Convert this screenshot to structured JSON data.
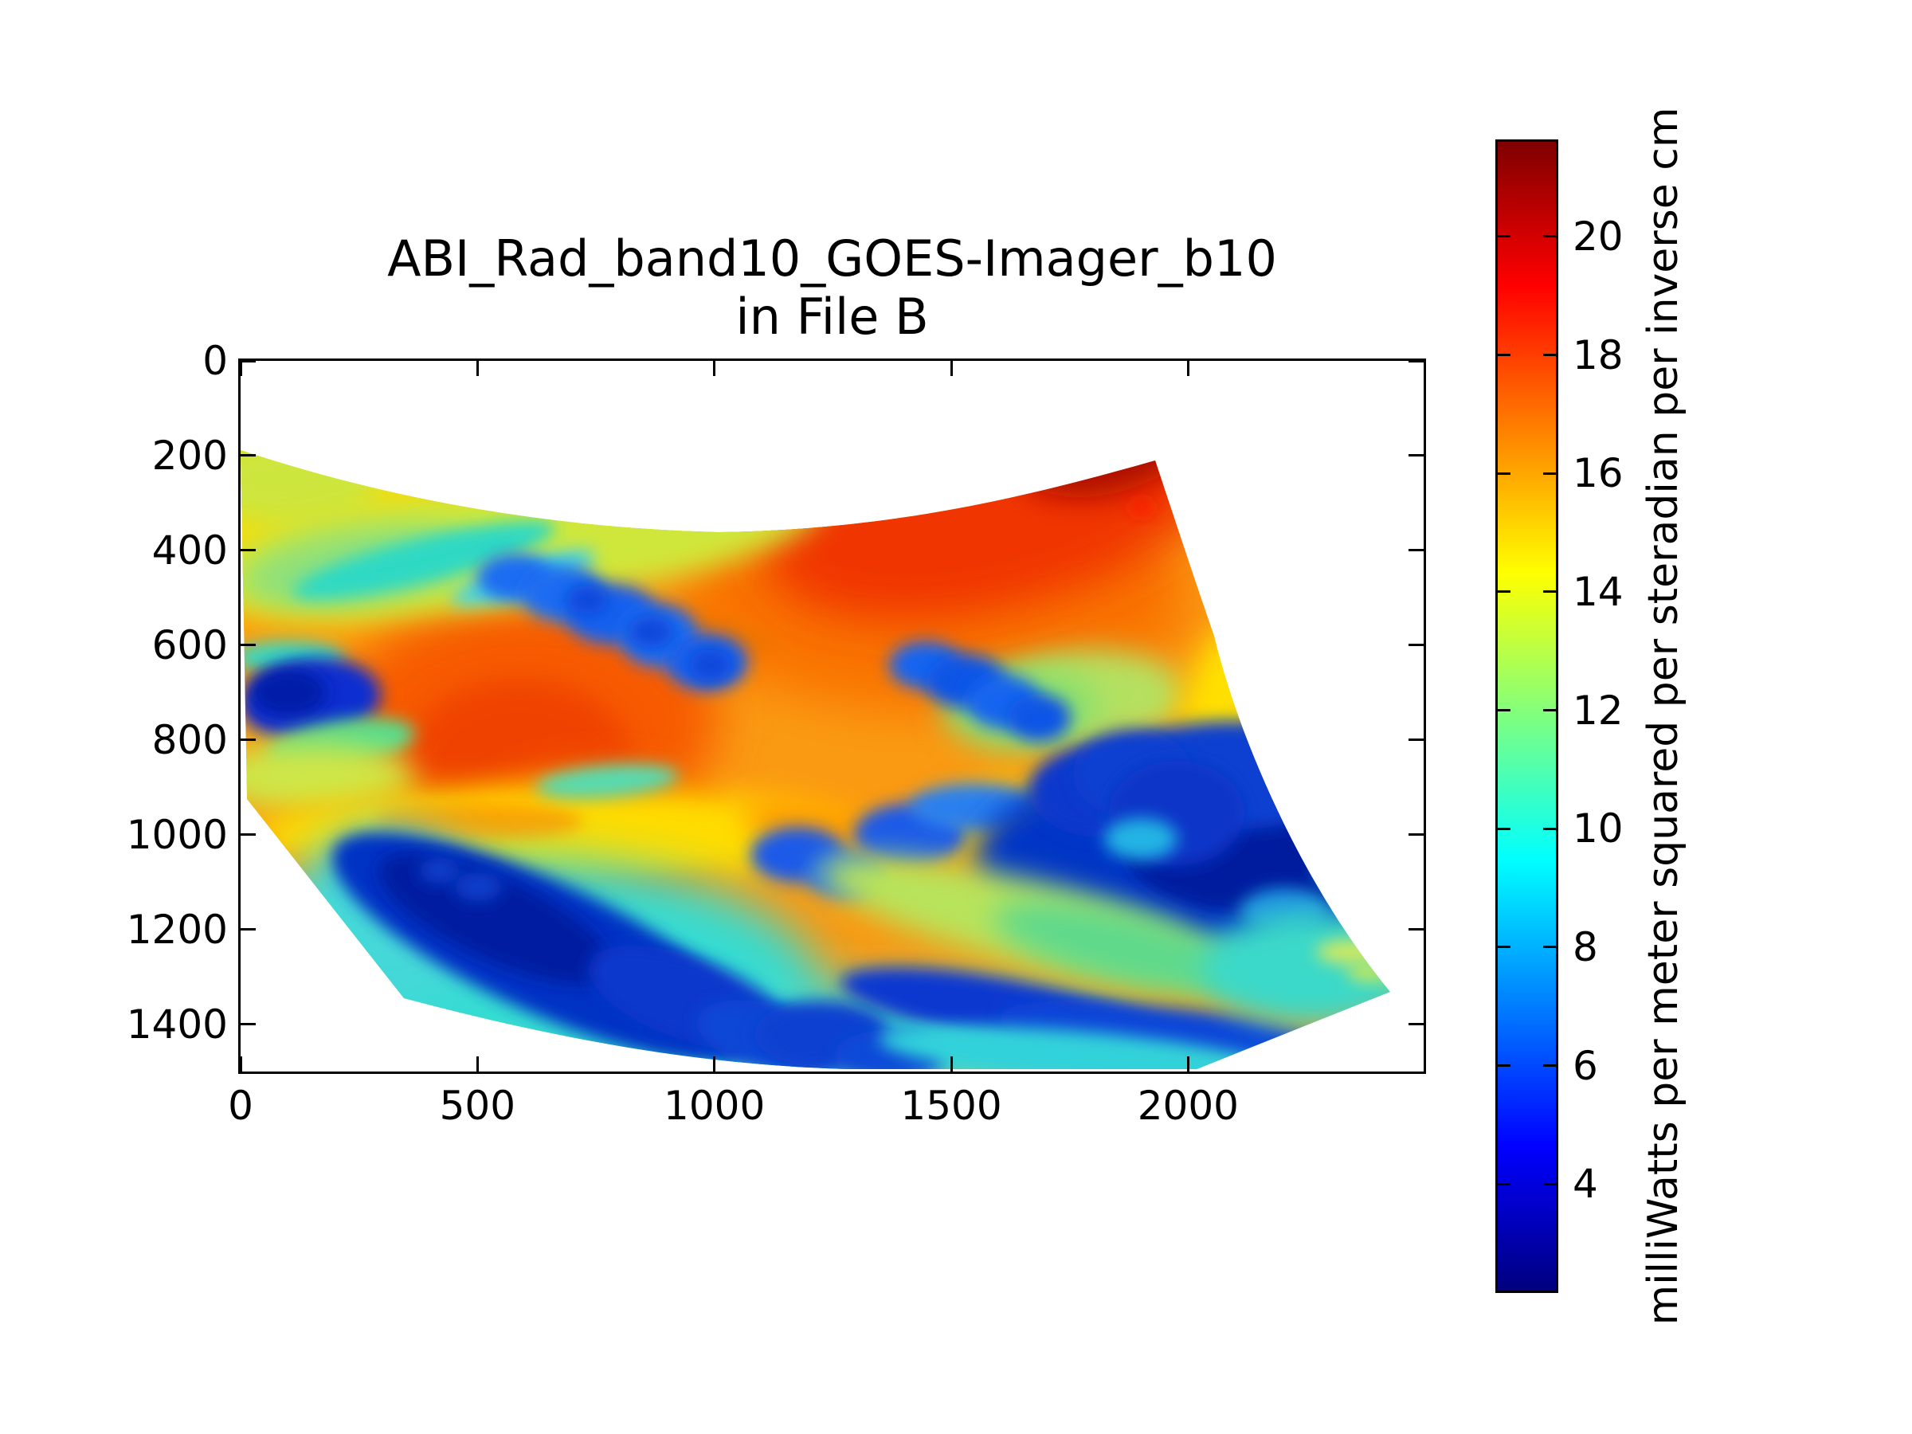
{
  "figure": {
    "background": "#ffffff",
    "title_text": "ABI_Rad_band10_GOES-Imager_b10\nin File B"
  },
  "axes": {
    "x_tick_labels": [
      "0",
      "500",
      "1000",
      "1500",
      "2000"
    ],
    "y_tick_labels": [
      "0",
      "200",
      "400",
      "600",
      "800",
      "1000",
      "1200",
      "1400"
    ]
  },
  "colorbar": {
    "tick_labels": [
      "4",
      "6",
      "8",
      "10",
      "12",
      "14",
      "16",
      "18",
      "20"
    ],
    "label": "milliWatts per meter squared per steradian per inverse cm",
    "colormap": "jet",
    "value_min": 2.2,
    "value_max": 21.6,
    "colors": {
      "min": "#00007f",
      "low": "#0000ff",
      "mid_low": "#00ffff",
      "mid_high": "#ffff00",
      "high": "#ff0000",
      "max": "#7f0000"
    }
  },
  "chart_data": {
    "type": "heatmap",
    "title": "ABI_Rad_band10_GOES-Imager_b10\nin File B",
    "xlabel": "",
    "ylabel": "",
    "xlim": [
      0,
      2500
    ],
    "ylim": [
      1500,
      0
    ],
    "x_ticks": [
      0,
      500,
      1000,
      1500,
      2000
    ],
    "y_ticks": [
      0,
      200,
      400,
      600,
      800,
      1000,
      1200,
      1400
    ],
    "grid": false,
    "legend": "colorbar right",
    "colormap": "jet",
    "colorbar_ticks": [
      4,
      6,
      8,
      10,
      12,
      14,
      16,
      18,
      20
    ],
    "colorbar_range": [
      2.2,
      21.6
    ],
    "colorbar_label": "milliWatts per meter squared per steradian per inverse cm",
    "swath_outline_xy": [
      [
        0,
        188
      ],
      [
        335,
        288
      ],
      [
        670,
        345
      ],
      [
        1010,
        362
      ],
      [
        1345,
        345
      ],
      [
        1595,
        295
      ],
      [
        1930,
        210
      ],
      [
        1980,
        330
      ],
      [
        2050,
        580
      ],
      [
        2115,
        805
      ],
      [
        2200,
        1055
      ],
      [
        2320,
        1225
      ],
      [
        2425,
        1330
      ],
      [
        2015,
        1500
      ],
      [
        1275,
        1500
      ],
      [
        1005,
        1490
      ],
      [
        750,
        1455
      ],
      [
        535,
        1415
      ],
      [
        345,
        1345
      ],
      [
        85,
        925
      ],
      [
        13,
        920
      ],
      [
        0,
        188
      ]
    ],
    "regions": [
      {
        "x_range": [
          1750,
          2000
        ],
        "y_range": [
          190,
          400
        ],
        "value_mw": "19-21.5",
        "appearance": "dark red radiance maximum at pointed top-right corner of swath"
      },
      {
        "x_range": [
          0,
          2000
        ],
        "y_range": [
          250,
          900
        ],
        "value_mw": "16-18",
        "appearance": "broad orange band across the upper swath"
      },
      {
        "x_range": [
          0,
          1200
        ],
        "y_range": [
          330,
          520
        ],
        "value_mw": "12-14",
        "appearance": "yellow-green diagonal band with cyan streaks"
      },
      {
        "x_range": [
          560,
          1050
        ],
        "y_range": [
          450,
          690
        ],
        "value_mw": "6-8",
        "appearance": "chain of small blue convective clouds"
      },
      {
        "x_range": [
          0,
          250
        ],
        "y_range": [
          560,
          800
        ],
        "value_mw": "3-6",
        "appearance": "dark blue cloud cluster on the left edge"
      },
      {
        "x_range": [
          300,
          950
        ],
        "y_range": [
          550,
          1050
        ],
        "value_mw": "17-18.5",
        "appearance": "deep orange-red warm core left of center"
      },
      {
        "x_range": [
          1400,
          1700
        ],
        "y_range": [
          600,
          780
        ],
        "value_mw": "5-8",
        "appearance": "blue cloud cluster right of center with green fringe"
      },
      {
        "x_range": [
          150,
          1350
        ],
        "y_range": [
          900,
          1500
        ],
        "value_mw": "9-11",
        "appearance": "cyan stratus sheet in the lower left"
      },
      {
        "x_range": [
          200,
          1300
        ],
        "y_range": [
          1000,
          1480
        ],
        "value_mw": "3-6",
        "appearance": "dark blue cloud streaks slanting through lower left"
      },
      {
        "x_range": [
          150,
          1850
        ],
        "y_range": [
          900,
          1250
        ],
        "value_mw": "14-16",
        "appearance": "yellow band with orange streaks across lower middle"
      },
      {
        "x_range": [
          1550,
          2420
        ],
        "y_range": [
          900,
          1400
        ],
        "value_mw": "3-6",
        "appearance": "large dark blue storm complex in lower right"
      },
      {
        "x_range": [
          1900,
          2420
        ],
        "y_range": [
          1150,
          1480
        ],
        "value_mw": "9-12",
        "appearance": "cyan-green clearing near bottom-right tip"
      }
    ]
  }
}
